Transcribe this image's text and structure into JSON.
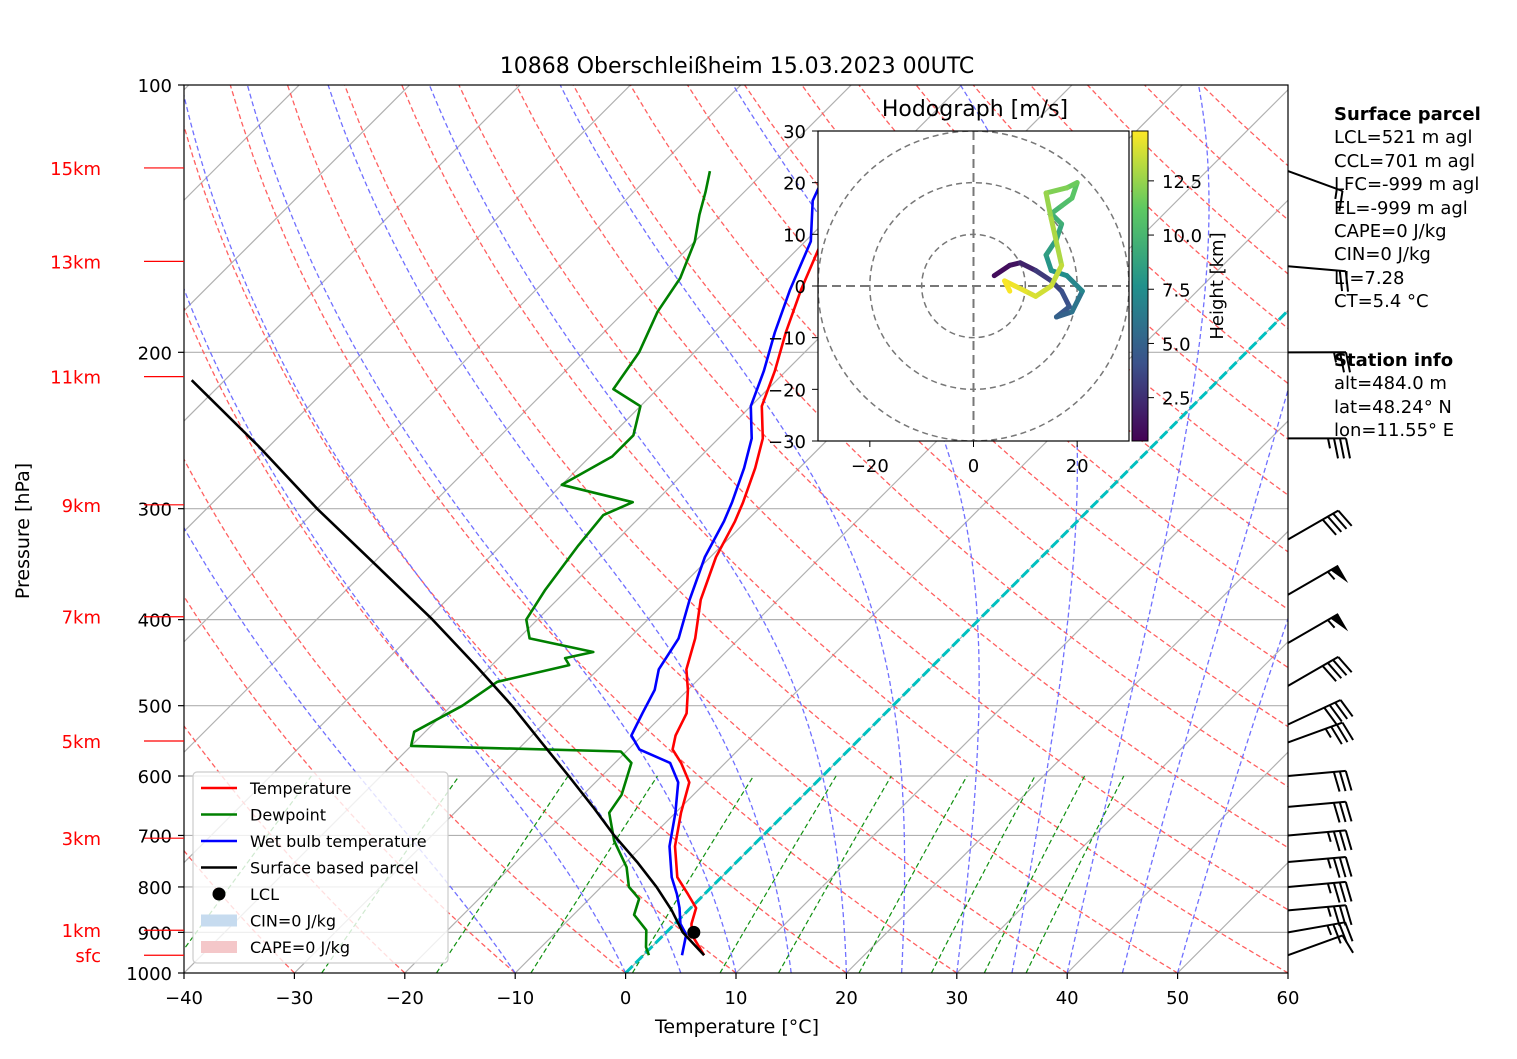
{
  "chart_data": {
    "type": "skew-t",
    "title": "10868 Oberschleißheim 15.03.2023 00UTC",
    "xlabel": "Temperature [°C]",
    "ylabel": "Pressure [hPa]",
    "xlim": [
      -40,
      60
    ],
    "ylim": [
      1000,
      100
    ],
    "x_ticks": [
      "−40",
      "−30",
      "−20",
      "−10",
      "0",
      "10",
      "20",
      "30",
      "40",
      "50",
      "60"
    ],
    "y_ticks": [
      {
        "p": 100,
        "label": "100"
      },
      {
        "p": 200,
        "label": "200"
      },
      {
        "p": 300,
        "label": "300"
      },
      {
        "p": 400,
        "label": "400"
      },
      {
        "p": 500,
        "label": "500"
      },
      {
        "p": 600,
        "label": "600"
      },
      {
        "p": 700,
        "label": "700"
      },
      {
        "p": 800,
        "label": "800"
      },
      {
        "p": 900,
        "label": "900"
      },
      {
        "p": 1000,
        "label": "1000"
      }
    ],
    "height_labels": [
      {
        "label": "15km",
        "p": 124
      },
      {
        "label": "13km",
        "p": 158
      },
      {
        "label": "11km",
        "p": 213
      },
      {
        "label": "9km",
        "p": 297
      },
      {
        "label": "7km",
        "p": 397
      },
      {
        "label": "5km",
        "p": 548
      },
      {
        "label": "3km",
        "p": 705
      },
      {
        "label": "1km",
        "p": 895
      },
      {
        "label": "sfc",
        "p": 955
      }
    ],
    "series": [
      {
        "name": "Temperature",
        "color": "#ff0000",
        "points": [
          [
            5.5,
            955
          ],
          [
            2.5,
            905
          ],
          [
            1.5,
            880
          ],
          [
            0.5,
            845
          ],
          [
            -1.5,
            815
          ],
          [
            -4,
            780
          ],
          [
            -7,
            720
          ],
          [
            -9.5,
            660
          ],
          [
            -11.5,
            610
          ],
          [
            -14,
            580
          ],
          [
            -16,
            560
          ],
          [
            -17,
            540
          ],
          [
            -18,
            510
          ],
          [
            -20,
            480
          ],
          [
            -22,
            455
          ],
          [
            -24,
            420
          ],
          [
            -27,
            380
          ],
          [
            -29.5,
            340
          ],
          [
            -31,
            310
          ],
          [
            -32,
            295
          ],
          [
            -34,
            270
          ],
          [
            -36,
            250
          ],
          [
            -39,
            230
          ],
          [
            -41,
            210
          ],
          [
            -43.5,
            190
          ],
          [
            -46,
            170
          ],
          [
            -48.5,
            150
          ],
          [
            -52,
            135
          ],
          [
            -53,
            128
          ],
          [
            -53.5,
            123
          ]
        ]
      },
      {
        "name": "Dewpoint",
        "color": "#008000",
        "points": [
          [
            0.5,
            955
          ],
          [
            -0.5,
            935
          ],
          [
            -2,
            895
          ],
          [
            -4.5,
            860
          ],
          [
            -5.5,
            825
          ],
          [
            -7.5,
            800
          ],
          [
            -9.5,
            760
          ],
          [
            -13,
            710
          ],
          [
            -16,
            660
          ],
          [
            -16.5,
            630
          ],
          [
            -18.5,
            580
          ],
          [
            -20.5,
            563
          ],
          [
            -40,
            555
          ],
          [
            -41,
            535
          ],
          [
            -39,
            500
          ],
          [
            -38,
            470
          ],
          [
            -33,
            450
          ],
          [
            -34,
            442
          ],
          [
            -32,
            435
          ],
          [
            -39,
            420
          ],
          [
            -41,
            400
          ],
          [
            -42,
            370
          ],
          [
            -43,
            330
          ],
          [
            -43.5,
            305
          ],
          [
            -42,
            295
          ],
          [
            -50,
            282
          ],
          [
            -48,
            262
          ],
          [
            -48,
            248
          ],
          [
            -50,
            230
          ],
          [
            -54,
            220
          ],
          [
            -55,
            200
          ],
          [
            -57,
            180
          ],
          [
            -58,
            165
          ],
          [
            -60,
            150
          ],
          [
            -62,
            140
          ],
          [
            -63.5,
            132
          ],
          [
            -65,
            125
          ]
        ]
      },
      {
        "name": "Wet bulb temperature",
        "color": "#0000ff",
        "points": [
          [
            3.5,
            955
          ],
          [
            2,
            905
          ],
          [
            0.5,
            880
          ],
          [
            -1,
            845
          ],
          [
            -2.5,
            815
          ],
          [
            -4.5,
            780
          ],
          [
            -7.5,
            720
          ],
          [
            -10,
            660
          ],
          [
            -12.5,
            610
          ],
          [
            -15,
            580
          ],
          [
            -19,
            560
          ],
          [
            -21,
            540
          ],
          [
            -22,
            510
          ],
          [
            -23,
            480
          ],
          [
            -24.5,
            455
          ],
          [
            -25.5,
            420
          ],
          [
            -28,
            380
          ],
          [
            -30.5,
            340
          ],
          [
            -32,
            310
          ],
          [
            -33,
            295
          ],
          [
            -35,
            270
          ],
          [
            -37,
            250
          ],
          [
            -40,
            230
          ],
          [
            -42,
            210
          ],
          [
            -44.5,
            190
          ],
          [
            -47,
            170
          ],
          [
            -49.5,
            150
          ],
          [
            -53,
            135
          ],
          [
            -54,
            128
          ],
          [
            -54.5,
            123
          ]
        ]
      },
      {
        "name": "Surface based parcel",
        "color": "#000000",
        "points": [
          [
            5.5,
            955
          ],
          [
            1.5,
            900
          ],
          [
            -1.5,
            850
          ],
          [
            -5,
            800
          ],
          [
            -9,
            750
          ],
          [
            -13.5,
            700
          ],
          [
            -18,
            650
          ],
          [
            -23,
            600
          ],
          [
            -28.5,
            550
          ],
          [
            -34.5,
            500
          ],
          [
            -41.5,
            450
          ],
          [
            -49.5,
            400
          ],
          [
            -59,
            350
          ],
          [
            -70,
            300
          ],
          [
            -81,
            255
          ],
          [
            -93,
            215
          ]
        ]
      }
    ],
    "lcl": {
      "name": "LCL",
      "t": 2.5,
      "p": 900
    },
    "freezing_line_color": "#00c0c0",
    "legend": {
      "position": "lower-left",
      "entries": [
        {
          "label": "Temperature",
          "kind": "line",
          "color": "#ff0000"
        },
        {
          "label": "Dewpoint",
          "kind": "line",
          "color": "#008000"
        },
        {
          "label": "Wet bulb temperature",
          "kind": "line",
          "color": "#0000ff"
        },
        {
          "label": "Surface based parcel",
          "kind": "line",
          "color": "#000000"
        },
        {
          "label": "LCL",
          "kind": "dot",
          "color": "#000000"
        },
        {
          "label": "CIN=0 J/kg",
          "kind": "patch",
          "color": "#c6dbef"
        },
        {
          "label": "CAPE=0 J/kg",
          "kind": "patch",
          "color": "#f4c7c9"
        }
      ]
    },
    "wind_barbs": [
      {
        "p": 955,
        "speed_kt": 10,
        "dir": 250
      },
      {
        "p": 900,
        "speed_kt": 35,
        "dir": 260
      },
      {
        "p": 850,
        "speed_kt": 35,
        "dir": 265
      },
      {
        "p": 800,
        "speed_kt": 35,
        "dir": 265
      },
      {
        "p": 750,
        "speed_kt": 35,
        "dir": 265
      },
      {
        "p": 700,
        "speed_kt": 35,
        "dir": 265
      },
      {
        "p": 650,
        "speed_kt": 30,
        "dir": 265
      },
      {
        "p": 600,
        "speed_kt": 30,
        "dir": 265
      },
      {
        "p": 550,
        "speed_kt": 35,
        "dir": 250
      },
      {
        "p": 525,
        "speed_kt": 40,
        "dir": 245
      },
      {
        "p": 475,
        "speed_kt": 40,
        "dir": 240
      },
      {
        "p": 425,
        "speed_kt": 55,
        "dir": 240
      },
      {
        "p": 375,
        "speed_kt": 55,
        "dir": 240
      },
      {
        "p": 325,
        "speed_kt": 40,
        "dir": 240
      },
      {
        "p": 250,
        "speed_kt": 35,
        "dir": 270
      },
      {
        "p": 200,
        "speed_kt": 25,
        "dir": 270
      },
      {
        "p": 160,
        "speed_kt": 20,
        "dir": 275
      },
      {
        "p": 125,
        "speed_kt": 15,
        "dir": 290
      }
    ],
    "hodograph": {
      "title": "Hodograph [m/s]",
      "xlim": [
        -30,
        30
      ],
      "ylim": [
        -30,
        30
      ],
      "x_ticks": [
        "−20",
        "0",
        "20"
      ],
      "y_ticks": [
        "30",
        "20",
        "10",
        "0",
        "−10",
        "−20",
        "−30"
      ],
      "rings": [
        10,
        20,
        30
      ],
      "colorbar": {
        "label": "Height [km]",
        "ticks": [
          "2.5",
          "5.0",
          "7.5",
          "10.0",
          "12.5"
        ],
        "min": 0.5,
        "max": 14.8
      },
      "points": [
        [
          4,
          2,
          0.5
        ],
        [
          7,
          4,
          1
        ],
        [
          9,
          4.5,
          1.3
        ],
        [
          12,
          3,
          2
        ],
        [
          15,
          1,
          3
        ],
        [
          17,
          -1,
          3.5
        ],
        [
          18.5,
          -4,
          4
        ],
        [
          16,
          -6,
          4.4
        ],
        [
          19,
          -5,
          5
        ],
        [
          21,
          -1,
          6
        ],
        [
          18,
          2,
          7
        ],
        [
          15,
          3,
          7.5
        ],
        [
          14,
          6,
          8
        ],
        [
          16,
          9,
          8.5
        ],
        [
          17,
          12,
          9
        ],
        [
          15,
          14,
          9.5
        ],
        [
          17,
          15.5,
          10
        ],
        [
          19,
          17,
          10.5
        ],
        [
          20,
          20,
          11
        ],
        [
          18,
          19,
          11.5
        ],
        [
          14,
          18,
          12
        ],
        [
          15,
          13,
          12.5
        ],
        [
          17,
          4,
          13
        ],
        [
          15,
          0,
          13.5
        ],
        [
          12,
          -2,
          13.8
        ],
        [
          10,
          -1,
          14
        ],
        [
          8,
          0,
          14.3
        ],
        [
          6,
          1,
          14.5
        ],
        [
          7,
          -1,
          14.7
        ]
      ]
    }
  },
  "surface_parcel": {
    "title": "Surface parcel",
    "lines": [
      "LCL=521 m agl",
      "CCL=701 m agl",
      "LFC=-999 m agl",
      "EL=-999 m agl",
      "CAPE=0 J/kg",
      "CIN=0 J/kg",
      "LI=7.28",
      "CT=5.4 °C"
    ]
  },
  "station_info": {
    "title": "Station info",
    "lines": [
      "alt=484.0 m",
      "lat=48.24° N",
      "lon=11.55° E"
    ]
  }
}
